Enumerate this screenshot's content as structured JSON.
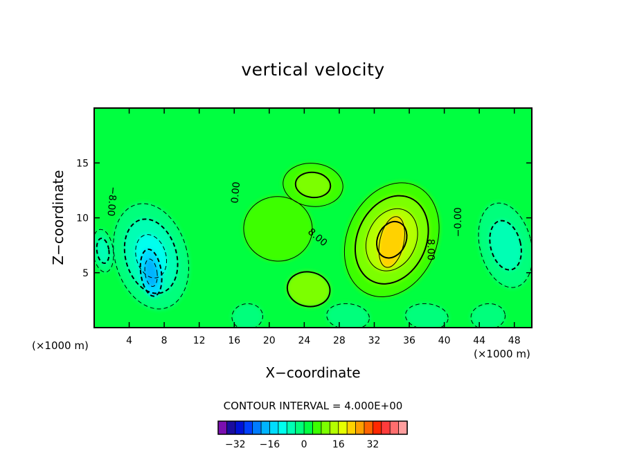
{
  "chart_data": {
    "type": "heatmap",
    "title": "vertical velocity",
    "xlabel": "X−coordinate",
    "ylabel": "Z−coordinate",
    "x_unit": "(×1000 m)",
    "xlim": [
      0,
      50
    ],
    "ylim": [
      0,
      20
    ],
    "x_ticks": [
      4,
      8,
      12,
      16,
      20,
      24,
      28,
      32,
      36,
      40,
      44,
      48
    ],
    "y_ticks": [
      5,
      10,
      15
    ],
    "contour_interval_text": "CONTOUR INTERVAL = 4.000E+00",
    "contour_labels": [
      {
        "text": "−8.00",
        "x": 2.0,
        "y": 11.5,
        "angle": 95
      },
      {
        "text": "0.00",
        "x": 16.2,
        "y": 12.3,
        "angle": -85
      },
      {
        "text": "8.00",
        "x": 25.5,
        "y": 8.2,
        "angle": 40
      },
      {
        "text": "8.00",
        "x": 38.4,
        "y": 7.1,
        "angle": 90
      },
      {
        "text": "−0.00",
        "x": 41.6,
        "y": 9.6,
        "angle": -90
      }
    ],
    "field_blobs": [
      {
        "x": 6.5,
        "y": 6.5,
        "sx": 4.2,
        "sy": 5.0,
        "a": -16
      },
      {
        "x": 6.5,
        "y": 5.0,
        "sx": 1.2,
        "sy": 2.2,
        "a": -8
      },
      {
        "x": 1.0,
        "y": 7.0,
        "sx": 1.2,
        "sy": 2.0,
        "a": -8
      },
      {
        "x": 47.0,
        "y": 7.5,
        "sx": 3.0,
        "sy": 4.0,
        "a": -14
      },
      {
        "x": 34.0,
        "y": 8.0,
        "sx": 5.2,
        "sy": 5.5,
        "a": 24
      },
      {
        "x": 34.0,
        "y": 7.8,
        "sx": 1.4,
        "sy": 2.4,
        "a": 12
      },
      {
        "x": 24.5,
        "y": 3.5,
        "sx": 2.5,
        "sy": 1.6,
        "a": 10
      },
      {
        "x": 25.0,
        "y": 13.0,
        "sx": 3.5,
        "sy": 2.0,
        "a": 6
      },
      {
        "x": 21.0,
        "y": 9.0,
        "sx": 4.0,
        "sy": 3.0,
        "a": 4
      },
      {
        "x": 17.5,
        "y": 1.0,
        "sx": 1.8,
        "sy": 1.2,
        "a": -6
      },
      {
        "x": 45.0,
        "y": 1.0,
        "sx": 2.0,
        "sy": 1.2,
        "a": -6
      },
      {
        "x": 38.0,
        "y": 1.0,
        "sx": 2.5,
        "sy": 1.2,
        "a": 6
      },
      {
        "x": 29.0,
        "y": 1.0,
        "sx": 2.5,
        "sy": 1.2,
        "a": 6
      }
    ],
    "colorbar": {
      "colors": [
        "#7b0fb0",
        "#1a0d9e",
        "#0011d6",
        "#0040ff",
        "#007cff",
        "#00b4ff",
        "#00dcff",
        "#00ffee",
        "#00ffb4",
        "#00ff7c",
        "#00ff40",
        "#3cff00",
        "#7cff00",
        "#b4ff00",
        "#e6ff00",
        "#ffd200",
        "#ffa000",
        "#ff6400",
        "#ff2800",
        "#ff3c3c",
        "#ff6e6e",
        "#ff9e9e"
      ],
      "tick_labels": [
        "−32",
        "−16",
        "0",
        "16",
        "32"
      ],
      "tick_values": [
        -32,
        -16,
        0,
        16,
        32
      ],
      "min": -40,
      "max": 48
    }
  }
}
